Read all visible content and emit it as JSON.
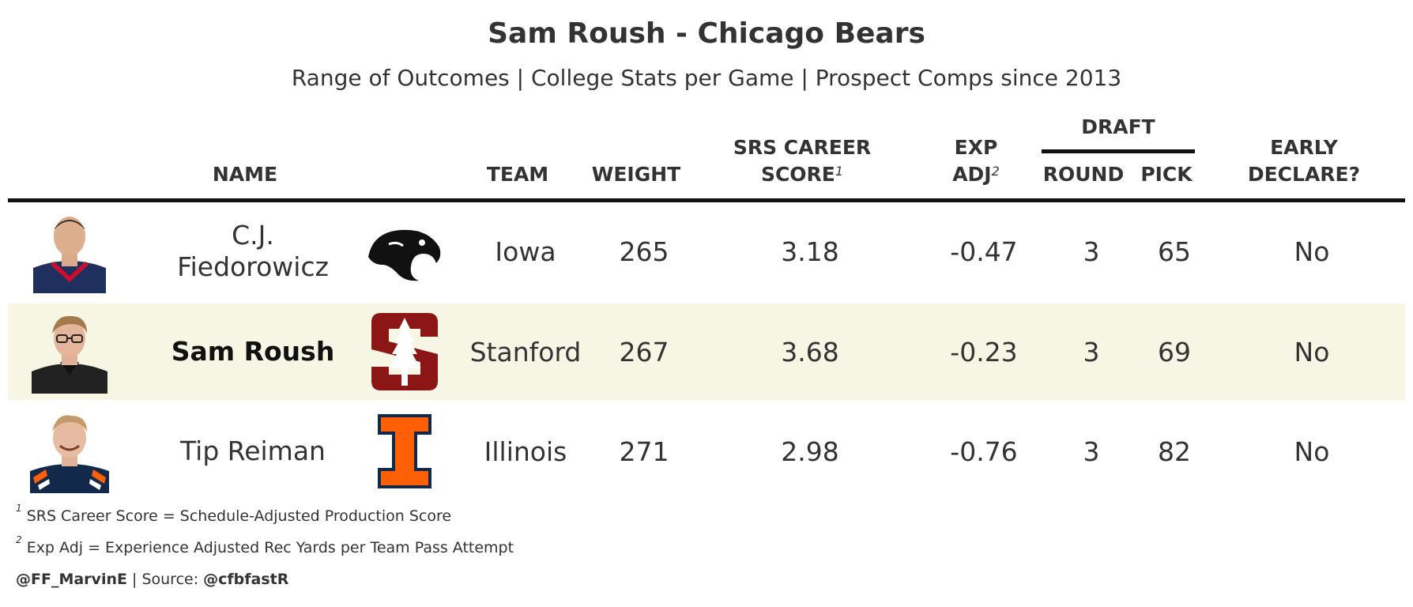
{
  "title": "Sam Roush - Chicago Bears",
  "subtitle": "Range of Outcomes | College Stats per Game | Prospect Comps since 2013",
  "headers": {
    "name": "NAME",
    "team": "TEAM",
    "weight": "WEIGHT",
    "srs_line1": "SRS CAREER",
    "srs_line2": "SCORE",
    "srs_note": "1",
    "exp_line1": "EXP",
    "exp_line2": "ADJ",
    "exp_note": "2",
    "draft": "DRAFT",
    "round": "ROUND",
    "pick": "PICK",
    "early_line1": "EARLY",
    "early_line2": "DECLARE?"
  },
  "rows": [
    {
      "name_line1": "C.J.",
      "name_line2": "Fiedorowicz",
      "team": "Iowa",
      "weight": "265",
      "srs": "3.18",
      "exp_adj": "-0.47",
      "round": "3",
      "pick": "65",
      "early_declare": "No",
      "logo_icon": "iowa-hawkeye-logo",
      "headshot_icon": "player-headshot",
      "jersey_color": "#1f2f5e",
      "accent_color": "#c8102e"
    },
    {
      "name": "Sam Roush",
      "team": "Stanford",
      "weight": "267",
      "srs": "3.68",
      "exp_adj": "-0.23",
      "round": "3",
      "pick": "69",
      "early_declare": "No",
      "logo_icon": "stanford-tree-logo",
      "headshot_icon": "player-headshot",
      "jersey_color": "#222222",
      "accent_color": "#8c1515"
    },
    {
      "name": "Tip Reiman",
      "team": "Illinois",
      "weight": "271",
      "srs": "2.98",
      "exp_adj": "-0.76",
      "round": "3",
      "pick": "82",
      "early_declare": "No",
      "logo_icon": "illinois-block-i-logo",
      "headshot_icon": "player-headshot",
      "jersey_color": "#13294b",
      "accent_color": "#ff5f05"
    }
  ],
  "footnotes": {
    "note1_mark": "1",
    "note1": "SRS Career Score = Schedule-Adjusted Production Score",
    "note2_mark": "2",
    "note2": "Exp Adj = Experience Adjusted Rec Yards per Team Pass Attempt",
    "credit_handle": "@FF_MarvinE",
    "credit_sep": " | Source: ",
    "credit_source": "@cfbfastR"
  },
  "colors": {
    "highlight_row": "#f7f6e5",
    "text": "#333333",
    "rule": "#111111"
  }
}
